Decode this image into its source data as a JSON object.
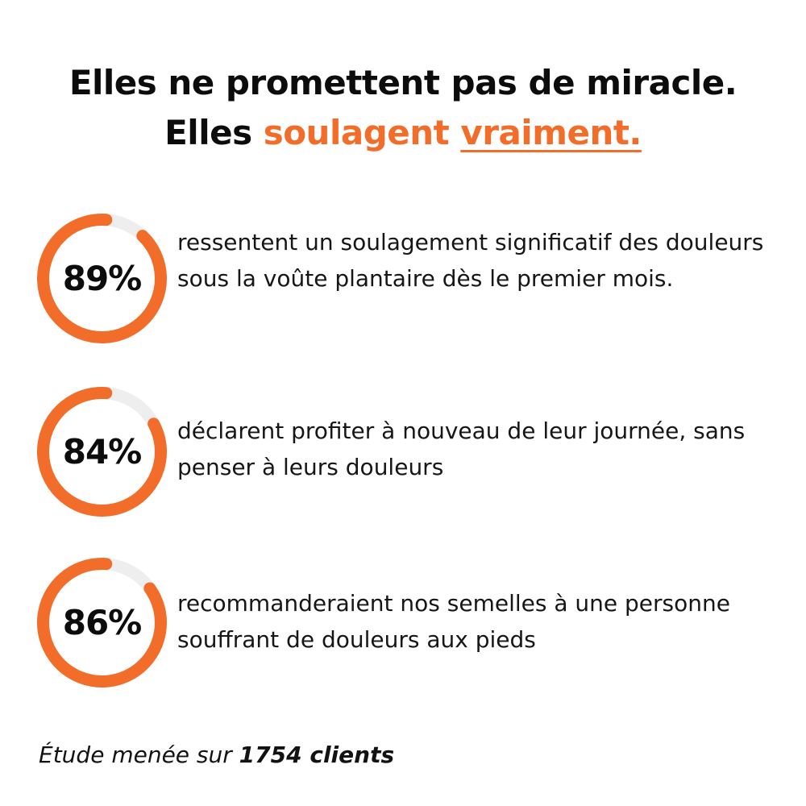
{
  "headline": {
    "line1": "Elles ne promettent pas de miracle.",
    "line2_prefix": "Elles ",
    "line2_accent": "soulagent",
    "line2_space": " ",
    "line2_underlined": "vraiment."
  },
  "colors": {
    "accent": "#f26c2a",
    "track": "#eeeeee",
    "text": "#0c0c0c"
  },
  "stats": [
    {
      "value": "89%",
      "fraction": 0.89,
      "text": "ressentent un soulagement significatif des douleurs sous la voûte plantaire dès le premier mois."
    },
    {
      "value": "84%",
      "fraction": 0.84,
      "text": "déclarent profiter à nouveau de leur journée, sans penser à leurs douleurs"
    },
    {
      "value": "86%",
      "fraction": 0.86,
      "text": "recommanderaient nos semelles à une personne souffrant de douleurs aux pieds"
    }
  ],
  "footnote": {
    "prefix": "Étude menée sur ",
    "emphasis": "1754 clients"
  }
}
